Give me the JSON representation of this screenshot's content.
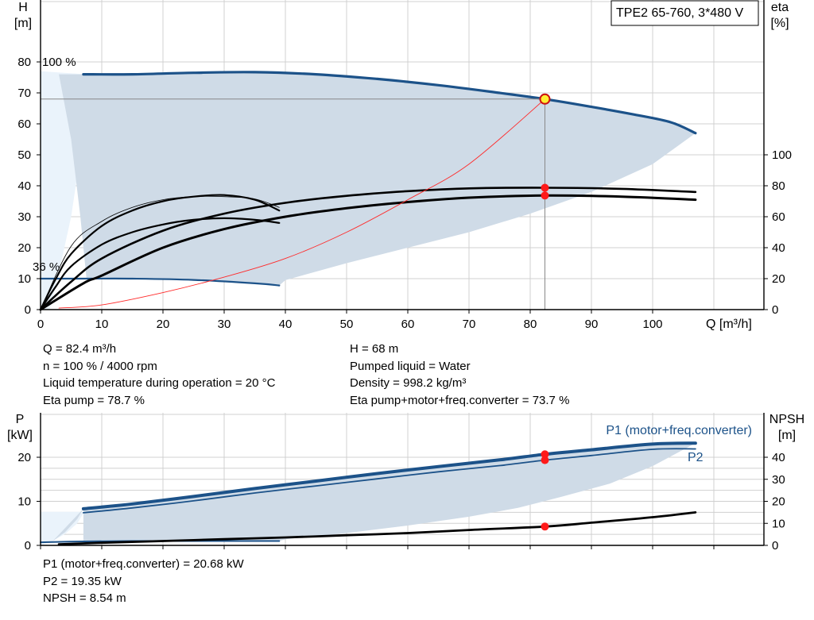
{
  "title": "TPE2 65-760, 3*480 V",
  "colors": {
    "envelope_fill": "#cfdbe7",
    "envelope_left_fill": "#eaf3fb",
    "pump_curve": "#1c5289",
    "efficiency_curve": "#000000",
    "system_curve": "#ff2a2a",
    "op_point": "#ff1a1a",
    "op_point_main": "#ffee33",
    "grid": "#d0d0d0",
    "p1_label_color": "#1c5289"
  },
  "top_chart": {
    "type": "line",
    "y_left_label": "H",
    "y_left_unit": "[m]",
    "y_right_label": "eta",
    "y_right_unit": "[%]",
    "x_label": "Q [m³/h]",
    "x_ticks": [
      "0",
      "10",
      "20",
      "30",
      "40",
      "50",
      "60",
      "70",
      "80",
      "90",
      "100"
    ],
    "y_left_ticks": [
      "0",
      "10",
      "20",
      "30",
      "40",
      "50",
      "60",
      "70",
      "80"
    ],
    "y_right_ticks": [
      "0",
      "20",
      "40",
      "60",
      "80",
      "100"
    ],
    "speed_label_max": "100 %",
    "speed_label_min": "36 %"
  },
  "bottom_chart": {
    "type": "line",
    "y_left_label": "P",
    "y_left_unit": "[kW]",
    "y_right_label": "NPSH",
    "y_right_unit": "[m]",
    "y_left_ticks": [
      "0",
      "10",
      "20"
    ],
    "y_right_ticks": [
      "0",
      "10",
      "20",
      "30",
      "40"
    ],
    "p1_label": "P1 (motor+freq.converter)",
    "p2_label": "P2"
  },
  "chart_data": [
    {
      "type": "line",
      "title": "TPE2 65-760, 3*480 V",
      "xlabel": "Q [m³/h]",
      "ylabel": "H [m]",
      "y2label": "eta [%]",
      "xlim": [
        0,
        120
      ],
      "ylim": [
        0,
        87
      ],
      "y2lim": [
        0,
        145
      ],
      "grid": true,
      "series": [
        {
          "name": "H 100 %",
          "axis": "H",
          "x": [
            7,
            15,
            25,
            35,
            45,
            55,
            65,
            75,
            82.4,
            90,
            97,
            103,
            107
          ],
          "y": [
            76,
            76,
            76.5,
            76.7,
            76,
            74.5,
            72.5,
            70,
            68,
            65.5,
            63,
            60.5,
            57
          ]
        },
        {
          "name": "H 36 %",
          "axis": "H",
          "x": [
            0,
            7,
            15,
            25,
            35,
            39
          ],
          "y": [
            10,
            10,
            10,
            9.6,
            8.5,
            7.8
          ]
        },
        {
          "name": "eta pump",
          "axis": "eta",
          "x": [
            0,
            5,
            10,
            20,
            30,
            40,
            50,
            60,
            70,
            82.4,
            95,
            107
          ],
          "y": [
            0,
            18,
            33,
            51,
            62,
            69,
            73.5,
            76.5,
            78.3,
            78.7,
            78,
            76
          ]
        },
        {
          "name": "eta pump+motor+freq.converter",
          "axis": "eta",
          "x": [
            0,
            7,
            10,
            20,
            30,
            40,
            50,
            60,
            70,
            82.4,
            95,
            107
          ],
          "y": [
            0,
            17,
            22,
            40,
            52,
            60,
            65.5,
            69.5,
            72.3,
            73.7,
            73,
            71
          ]
        },
        {
          "name": "eta 36 % pump",
          "axis": "eta",
          "x": [
            0,
            2.5,
            5,
            10,
            15,
            20,
            25,
            30,
            35,
            39
          ],
          "y": [
            0,
            20,
            36,
            54,
            64,
            70,
            73,
            74,
            71,
            64
          ]
        },
        {
          "name": "eta 36 % total",
          "axis": "eta",
          "x": [
            0,
            2.5,
            5,
            10,
            15,
            20,
            25,
            30,
            35,
            39
          ],
          "y": [
            0,
            15,
            28,
            42,
            50,
            55,
            58,
            59,
            58,
            56
          ]
        },
        {
          "name": "eta 36 % pump (thin)",
          "axis": "eta",
          "x": [
            0,
            5,
            10,
            15,
            20,
            25,
            30,
            35,
            39
          ],
          "y": [
            0,
            41,
            57,
            66,
            71,
            73,
            73,
            71.5,
            66
          ]
        },
        {
          "name": "system curve",
          "axis": "H",
          "x": [
            3,
            10,
            20,
            30,
            40,
            50,
            60,
            70,
            82.4
          ],
          "y": [
            0.5,
            1.5,
            5.5,
            10.5,
            16.5,
            25,
            35.5,
            47,
            68
          ]
        }
      ],
      "envelope": {
        "upper_x": [
          7,
          15,
          25,
          35,
          45,
          55,
          65,
          75,
          82.4,
          90,
          97,
          103,
          107
        ],
        "upper_y": [
          76,
          76,
          76.5,
          76.7,
          76,
          74.5,
          72.5,
          70,
          68,
          65.5,
          63,
          60.5,
          57
        ],
        "lower_x": [
          107,
          100,
          90,
          80,
          70,
          60,
          50,
          40,
          39
        ],
        "lower_y": [
          57,
          47,
          38,
          31,
          25,
          20,
          15,
          9.5,
          7.8
        ],
        "left_x": [
          39,
          35,
          25,
          15,
          7.5,
          6.5,
          5,
          3
        ],
        "left_y": [
          7.8,
          8.5,
          9.6,
          10,
          10,
          30,
          55,
          76
        ],
        "left_zone_x": [
          0,
          7.5,
          7.5,
          6.5,
          5,
          3,
          1.5,
          0
        ],
        "left_zone_y": [
          77,
          76,
          74,
          50,
          30,
          12,
          0,
          0
        ]
      },
      "operating_points": [
        {
          "x": 82.4,
          "y": 68,
          "axis": "H"
        },
        {
          "x": 82.4,
          "y": 78.7,
          "axis": "eta"
        },
        {
          "x": 82.4,
          "y": 73.7,
          "axis": "eta"
        }
      ]
    },
    {
      "type": "line",
      "xlabel": "Q [m³/h]",
      "ylabel": "P [kW]",
      "y2label": "NPSH [m]",
      "xlim": [
        0,
        120
      ],
      "ylim": [
        0,
        26
      ],
      "y2lim": [
        0,
        52
      ],
      "grid": true,
      "series": [
        {
          "name": "P1 (motor+freq.converter)",
          "axis": "P",
          "x": [
            7,
            15,
            25,
            35,
            45,
            55,
            65,
            75,
            82.4,
            90,
            100,
            107
          ],
          "y": [
            8.3,
            9.4,
            11.1,
            12.9,
            14.6,
            16.3,
            17.9,
            19.4,
            20.68,
            21.7,
            23,
            23.2
          ]
        },
        {
          "name": "P2",
          "axis": "P",
          "x": [
            7,
            15,
            25,
            35,
            45,
            55,
            65,
            75,
            82.4,
            90,
            100,
            107
          ],
          "y": [
            7.4,
            8.5,
            10.1,
            11.9,
            13.5,
            15.1,
            16.7,
            18.1,
            19.35,
            20.4,
            21.8,
            21.9
          ]
        },
        {
          "name": "P 36 %",
          "axis": "P",
          "x": [
            0,
            7,
            15,
            25,
            35,
            39
          ],
          "y": [
            0.7,
            0.9,
            1.0,
            1.0,
            1.0,
            1.0
          ]
        },
        {
          "name": "NPSH",
          "axis": "NPSH",
          "x": [
            3,
            10,
            20,
            30,
            40,
            50,
            60,
            70,
            82.4,
            90,
            100,
            107
          ],
          "y": [
            0.5,
            1.2,
            2,
            2.8,
            3.6,
            4.6,
            5.6,
            7,
            8.54,
            10.3,
            12.8,
            15
          ]
        }
      ],
      "envelope": {
        "upper_x": [
          7,
          15,
          25,
          35,
          45,
          55,
          65,
          75,
          82.4,
          90,
          100,
          107
        ],
        "upper_y": [
          8.3,
          9.4,
          11.1,
          12.9,
          14.6,
          16.3,
          17.9,
          19.4,
          20.68,
          21.7,
          23,
          23.2
        ],
        "lower_x": [
          107,
          100,
          93,
          85,
          78,
          70,
          60,
          50,
          40,
          39
        ],
        "lower_y": [
          23.2,
          18,
          14,
          11,
          8.5,
          6.5,
          4.5,
          2.8,
          1.4,
          1.0
        ],
        "left_x": [
          39,
          25,
          15,
          7,
          7,
          6,
          4,
          2
        ],
        "left_y": [
          1.0,
          1.0,
          1.0,
          0.9,
          8.3,
          6,
          3,
          1
        ],
        "left_zone_x": [
          0,
          7,
          7,
          6,
          4,
          2,
          0
        ],
        "left_zone_y": [
          7.6,
          7.6,
          7.3,
          5,
          2.6,
          1,
          0
        ]
      },
      "operating_points": [
        {
          "x": 82.4,
          "y": 20.68,
          "axis": "P"
        },
        {
          "x": 82.4,
          "y": 19.35,
          "axis": "P"
        },
        {
          "x": 82.4,
          "y": 8.54,
          "axis": "NPSH"
        }
      ]
    }
  ],
  "info_top": {
    "q": "Q = 82.4 m³/h",
    "n": "n = 100 % / 4000 rpm",
    "temp": "Liquid temperature during operation = 20 °C",
    "eta_pump": "Eta pump = 78.7 %",
    "h": "H = 68 m",
    "liquid": "Pumped liquid = Water",
    "density": "Density = 998.2 kg/m³",
    "eta_total": "Eta pump+motor+freq.converter = 73.7 %"
  },
  "info_bottom": {
    "p1": "P1 (motor+freq.converter) = 20.68 kW",
    "p2": "P2 = 19.35 kW",
    "npsh": "NPSH = 8.54 m"
  }
}
